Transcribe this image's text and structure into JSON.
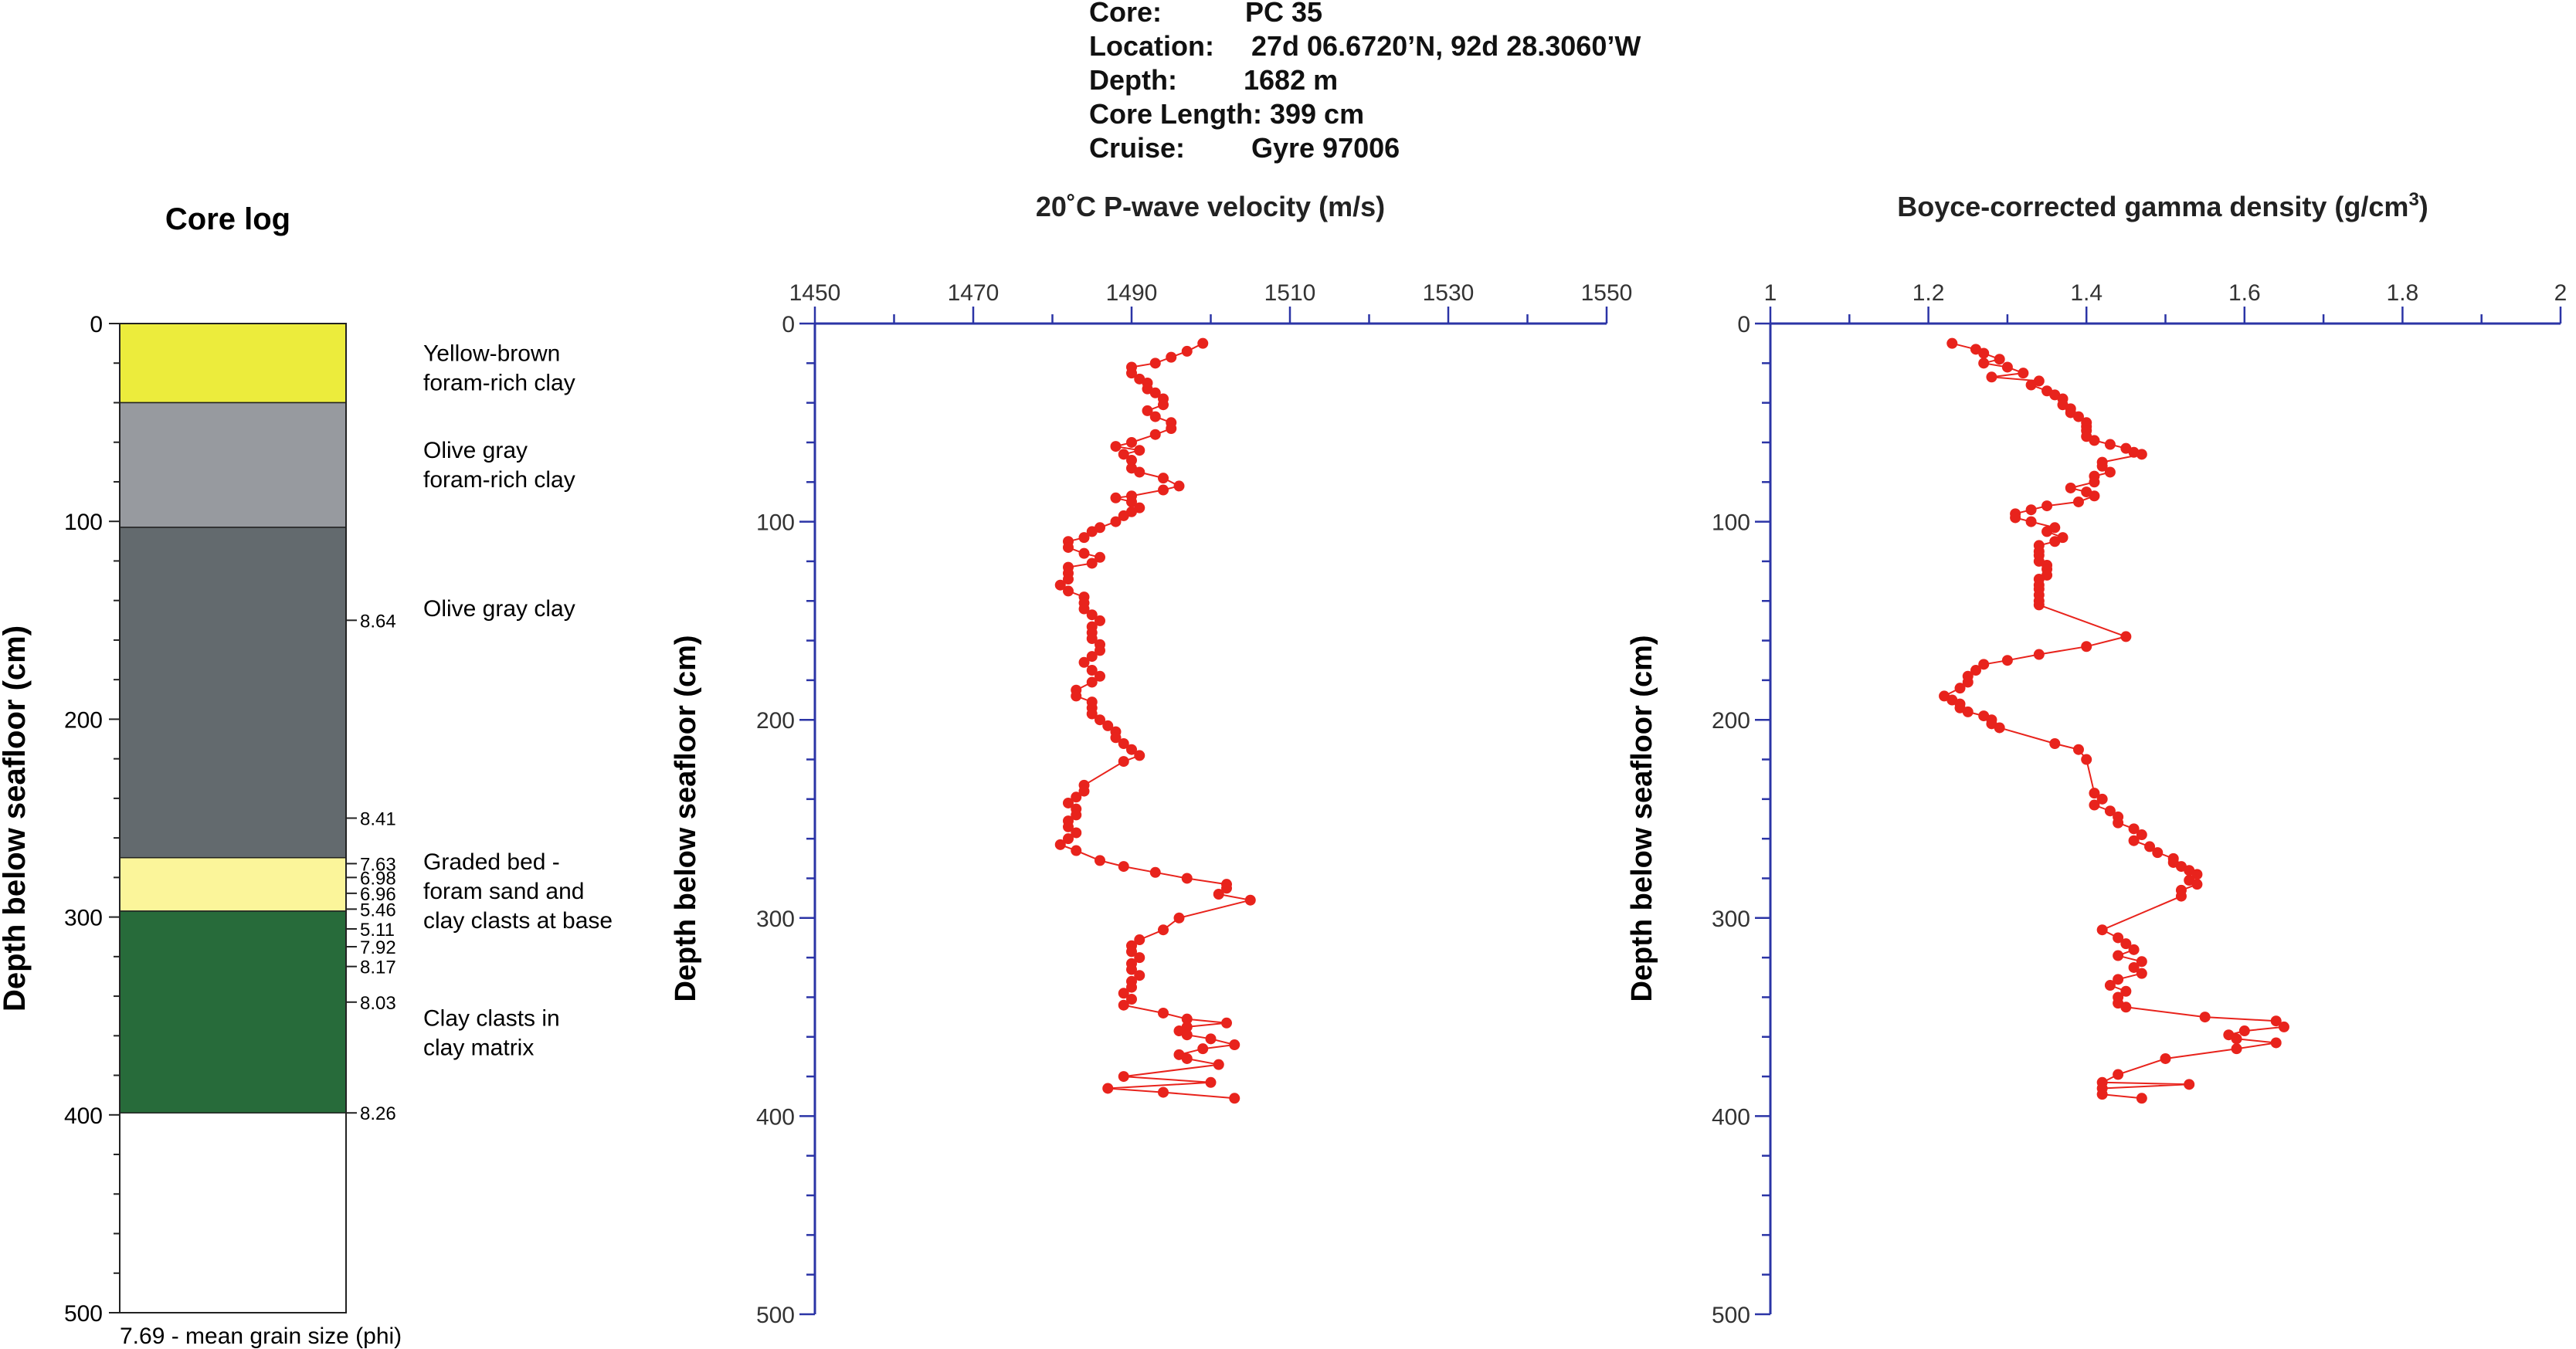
{
  "header": {
    "rows": [
      {
        "label": "Core:",
        "value": "PC 35",
        "offset": 202
      },
      {
        "label": "Location:",
        "value": "27d 06.6720’N, 92d 28.3060’W",
        "offset": 210
      },
      {
        "label": "Depth:",
        "value": "1682 m",
        "offset": 200
      },
      {
        "label": "Core Length:",
        "value": "399 cm",
        "offset": 0
      },
      {
        "label": "Cruise:",
        "value": "Gyre 97006",
        "offset": 210
      }
    ]
  },
  "core_log": {
    "title": "Core log",
    "ylabel": "Depth below seafloor (cm)",
    "ylim": [
      0,
      500
    ],
    "yticks": [
      "0",
      "100",
      "200",
      "300",
      "400",
      "500"
    ],
    "footnote": "7.69 - mean grain size (phi)",
    "units": [
      {
        "top": 0,
        "bottom": 40,
        "color": "#ecec3c",
        "desc": [
          "Yellow-brown",
          "foram-rich clay"
        ],
        "desc_depth": 8
      },
      {
        "top": 40,
        "bottom": 103,
        "color": "#979a9f",
        "desc": [
          "Olive gray",
          "foram-rich clay"
        ],
        "desc_depth": 57
      },
      {
        "top": 103,
        "bottom": 270,
        "color": "#636a6e",
        "desc": [
          "Olive gray clay"
        ],
        "desc_depth": 137
      },
      {
        "top": 270,
        "bottom": 297,
        "color": "#fbf59a",
        "desc": [
          "Graded bed -",
          "foram sand and",
          "clay clasts at base"
        ],
        "desc_depth": 265
      },
      {
        "top": 297,
        "bottom": 399,
        "color": "#276b3a",
        "desc": [
          "Clay clasts in",
          "clay matrix"
        ],
        "desc_depth": 344
      }
    ],
    "grain_sizes": [
      {
        "depth": 150,
        "phi": "8.64"
      },
      {
        "depth": 250,
        "phi": "8.41"
      },
      {
        "depth": 273,
        "phi": "7.63"
      },
      {
        "depth": 280,
        "phi": "6.98"
      },
      {
        "depth": 288,
        "phi": "6.96"
      },
      {
        "depth": 296,
        "phi": "5.46"
      },
      {
        "depth": 306,
        "phi": "5.11"
      },
      {
        "depth": 315,
        "phi": "7.92"
      },
      {
        "depth": 325,
        "phi": "8.17"
      },
      {
        "depth": 343,
        "phi": "8.03"
      },
      {
        "depth": 399,
        "phi": "8.26"
      }
    ]
  },
  "chart_data": [
    {
      "type": "scatter",
      "title": "20˚C P-wave velocity (m/s)",
      "xlabel": "",
      "ylabel": "Depth below seafloor (cm)",
      "xlim": [
        1450,
        1550
      ],
      "ylim": [
        0,
        500
      ],
      "xticks": [
        "1450",
        "1470",
        "1490",
        "1510",
        "1530",
        "1550"
      ],
      "yticks": [
        "0",
        "100",
        "200",
        "300",
        "400",
        "500"
      ],
      "color": "#e8231c",
      "axis_color": "#2b34a6",
      "points": [
        [
          1499,
          10
        ],
        [
          1497,
          14
        ],
        [
          1495,
          17
        ],
        [
          1493,
          20
        ],
        [
          1490,
          22
        ],
        [
          1490,
          25
        ],
        [
          1491,
          28
        ],
        [
          1492,
          30
        ],
        [
          1492,
          33
        ],
        [
          1493,
          35
        ],
        [
          1494,
          38
        ],
        [
          1494,
          41
        ],
        [
          1492,
          44
        ],
        [
          1493,
          47
        ],
        [
          1495,
          50
        ],
        [
          1495,
          53
        ],
        [
          1493,
          56
        ],
        [
          1490,
          60
        ],
        [
          1488,
          62
        ],
        [
          1491,
          64
        ],
        [
          1489,
          66
        ],
        [
          1490,
          69
        ],
        [
          1490,
          73
        ],
        [
          1491,
          75
        ],
        [
          1494,
          78
        ],
        [
          1496,
          82
        ],
        [
          1494,
          84
        ],
        [
          1490,
          87
        ],
        [
          1488,
          88
        ],
        [
          1490,
          90
        ],
        [
          1491,
          93
        ],
        [
          1490,
          95
        ],
        [
          1489,
          97
        ],
        [
          1488,
          100
        ],
        [
          1486,
          103
        ],
        [
          1485,
          105
        ],
        [
          1484,
          108
        ],
        [
          1482,
          110
        ],
        [
          1482,
          113
        ],
        [
          1484,
          116
        ],
        [
          1486,
          118
        ],
        [
          1485,
          121
        ],
        [
          1482,
          123
        ],
        [
          1482,
          126
        ],
        [
          1482,
          129
        ],
        [
          1481,
          132
        ],
        [
          1482,
          135
        ],
        [
          1484,
          138
        ],
        [
          1484,
          141
        ],
        [
          1484,
          144
        ],
        [
          1485,
          147
        ],
        [
          1486,
          150
        ],
        [
          1485,
          153
        ],
        [
          1485,
          156
        ],
        [
          1485,
          159
        ],
        [
          1486,
          162
        ],
        [
          1486,
          165
        ],
        [
          1485,
          168
        ],
        [
          1484,
          171
        ],
        [
          1485,
          175
        ],
        [
          1486,
          178
        ],
        [
          1485,
          181
        ],
        [
          1483,
          185
        ],
        [
          1483,
          188
        ],
        [
          1485,
          191
        ],
        [
          1485,
          194
        ],
        [
          1485,
          197
        ],
        [
          1486,
          200
        ],
        [
          1487,
          203
        ],
        [
          1488,
          206
        ],
        [
          1488,
          209
        ],
        [
          1489,
          212
        ],
        [
          1490,
          215
        ],
        [
          1491,
          218
        ],
        [
          1489,
          221
        ],
        [
          1484,
          233
        ],
        [
          1484,
          236
        ],
        [
          1483,
          239
        ],
        [
          1482,
          242
        ],
        [
          1483,
          245
        ],
        [
          1483,
          248
        ],
        [
          1482,
          251
        ],
        [
          1482,
          254
        ],
        [
          1483,
          257
        ],
        [
          1482,
          260
        ],
        [
          1481,
          263
        ],
        [
          1483,
          266
        ],
        [
          1486,
          271
        ],
        [
          1489,
          274
        ],
        [
          1493,
          277
        ],
        [
          1497,
          280
        ],
        [
          1502,
          283
        ],
        [
          1502,
          285
        ],
        [
          1501,
          288
        ],
        [
          1505,
          291
        ],
        [
          1496,
          300
        ],
        [
          1494,
          306
        ],
        [
          1491,
          311
        ],
        [
          1490,
          314
        ],
        [
          1490,
          317
        ],
        [
          1491,
          320
        ],
        [
          1490,
          323
        ],
        [
          1490,
          326
        ],
        [
          1491,
          329
        ],
        [
          1490,
          332
        ],
        [
          1490,
          335
        ],
        [
          1489,
          338
        ],
        [
          1490,
          341
        ],
        [
          1489,
          344
        ],
        [
          1494,
          348
        ],
        [
          1497,
          351
        ],
        [
          1502,
          353
        ],
        [
          1497,
          355
        ],
        [
          1496,
          357
        ],
        [
          1497,
          359
        ],
        [
          1500,
          361
        ],
        [
          1503,
          364
        ],
        [
          1499,
          366
        ],
        [
          1496,
          369
        ],
        [
          1497,
          371
        ],
        [
          1501,
          374
        ],
        [
          1489,
          380
        ],
        [
          1500,
          383
        ],
        [
          1487,
          386
        ],
        [
          1494,
          388
        ],
        [
          1503,
          391
        ]
      ]
    },
    {
      "type": "scatter",
      "title": "Boyce-corrected gamma density (g/cm³)",
      "xlabel": "",
      "ylabel": "Depth below seafloor (cm)",
      "xlim": [
        1,
        2
      ],
      "ylim": [
        0,
        500
      ],
      "xticks": [
        "1",
        "1.2",
        "1.4",
        "1.6",
        "1.8",
        "2"
      ],
      "yticks": [
        "0",
        "100",
        "200",
        "300",
        "400",
        "500"
      ],
      "color": "#e8231c",
      "axis_color": "#2b34a6",
      "points": [
        [
          1.23,
          10
        ],
        [
          1.26,
          13
        ],
        [
          1.27,
          15
        ],
        [
          1.29,
          18
        ],
        [
          1.27,
          20
        ],
        [
          1.3,
          22
        ],
        [
          1.32,
          25
        ],
        [
          1.28,
          27
        ],
        [
          1.34,
          29
        ],
        [
          1.33,
          31
        ],
        [
          1.35,
          34
        ],
        [
          1.36,
          36
        ],
        [
          1.37,
          38
        ],
        [
          1.37,
          41
        ],
        [
          1.38,
          43
        ],
        [
          1.38,
          45
        ],
        [
          1.39,
          47
        ],
        [
          1.4,
          50
        ],
        [
          1.4,
          52
        ],
        [
          1.4,
          54
        ],
        [
          1.4,
          57
        ],
        [
          1.41,
          59
        ],
        [
          1.43,
          61
        ],
        [
          1.45,
          63
        ],
        [
          1.46,
          65
        ],
        [
          1.47,
          66
        ],
        [
          1.42,
          70
        ],
        [
          1.42,
          72
        ],
        [
          1.43,
          75
        ],
        [
          1.41,
          77
        ],
        [
          1.41,
          80
        ],
        [
          1.38,
          83
        ],
        [
          1.4,
          85
        ],
        [
          1.41,
          87
        ],
        [
          1.39,
          90
        ],
        [
          1.35,
          92
        ],
        [
          1.33,
          94
        ],
        [
          1.31,
          96
        ],
        [
          1.31,
          98
        ],
        [
          1.33,
          100
        ],
        [
          1.36,
          103
        ],
        [
          1.35,
          105
        ],
        [
          1.37,
          108
        ],
        [
          1.36,
          110
        ],
        [
          1.34,
          112
        ],
        [
          1.34,
          115
        ],
        [
          1.34,
          117
        ],
        [
          1.34,
          120
        ],
        [
          1.35,
          122
        ],
        [
          1.35,
          124
        ],
        [
          1.35,
          127
        ],
        [
          1.34,
          129
        ],
        [
          1.34,
          132
        ],
        [
          1.34,
          134
        ],
        [
          1.34,
          137
        ],
        [
          1.34,
          140
        ],
        [
          1.34,
          142
        ],
        [
          1.45,
          158
        ],
        [
          1.4,
          163
        ],
        [
          1.34,
          167
        ],
        [
          1.3,
          170
        ],
        [
          1.27,
          172
        ],
        [
          1.26,
          175
        ],
        [
          1.25,
          178
        ],
        [
          1.25,
          181
        ],
        [
          1.24,
          184
        ],
        [
          1.22,
          188
        ],
        [
          1.23,
          190
        ],
        [
          1.24,
          192
        ],
        [
          1.24,
          194
        ],
        [
          1.25,
          196
        ],
        [
          1.27,
          198
        ],
        [
          1.28,
          200
        ],
        [
          1.28,
          202
        ],
        [
          1.29,
          204
        ],
        [
          1.36,
          212
        ],
        [
          1.39,
          215
        ],
        [
          1.4,
          220
        ],
        [
          1.41,
          237
        ],
        [
          1.42,
          240
        ],
        [
          1.41,
          243
        ],
        [
          1.43,
          246
        ],
        [
          1.44,
          249
        ],
        [
          1.44,
          252
        ],
        [
          1.46,
          255
        ],
        [
          1.47,
          258
        ],
        [
          1.46,
          261
        ],
        [
          1.48,
          264
        ],
        [
          1.49,
          267
        ],
        [
          1.51,
          270
        ],
        [
          1.51,
          272
        ],
        [
          1.52,
          274
        ],
        [
          1.53,
          276
        ],
        [
          1.54,
          278
        ],
        [
          1.53,
          281
        ],
        [
          1.54,
          283
        ],
        [
          1.52,
          286
        ],
        [
          1.52,
          289
        ],
        [
          1.42,
          306
        ],
        [
          1.44,
          310
        ],
        [
          1.45,
          313
        ],
        [
          1.46,
          316
        ],
        [
          1.44,
          319
        ],
        [
          1.47,
          322
        ],
        [
          1.46,
          325
        ],
        [
          1.47,
          328
        ],
        [
          1.44,
          331
        ],
        [
          1.43,
          334
        ],
        [
          1.45,
          337
        ],
        [
          1.44,
          340
        ],
        [
          1.44,
          343
        ],
        [
          1.45,
          345
        ],
        [
          1.55,
          350
        ],
        [
          1.64,
          352
        ],
        [
          1.65,
          355
        ],
        [
          1.6,
          357
        ],
        [
          1.58,
          359
        ],
        [
          1.59,
          361
        ],
        [
          1.64,
          363
        ],
        [
          1.59,
          366
        ],
        [
          1.5,
          371
        ],
        [
          1.44,
          379
        ],
        [
          1.42,
          383
        ],
        [
          1.53,
          384
        ],
        [
          1.42,
          386
        ],
        [
          1.42,
          389
        ],
        [
          1.47,
          391
        ]
      ]
    }
  ]
}
